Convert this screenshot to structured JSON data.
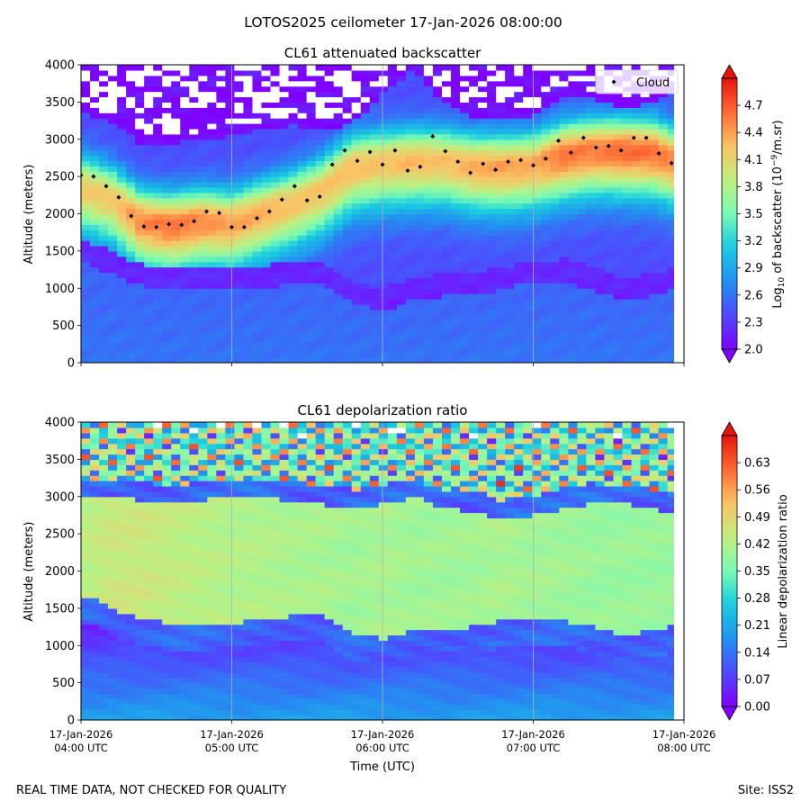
{
  "figure": {
    "suptitle": "LOTOS2025 ceilometer 17-Jan-2026 08:00:00",
    "footer_left": "REAL TIME DATA, NOT CHECKED FOR QUALITY",
    "footer_right": "Site: ISS2",
    "xlabel": "Time (UTC)"
  },
  "chart_data": [
    {
      "type": "heatmap",
      "title": "CL61 attenuated backscatter",
      "ylabel": "Altitude (meters)",
      "xlabel": "",
      "ylim": [
        0,
        4000
      ],
      "yticks": [
        0,
        500,
        1000,
        1500,
        2000,
        2500,
        3000,
        3500,
        4000
      ],
      "xticks": [
        "",
        "",
        "",
        "",
        ""
      ],
      "colorbar": {
        "label_prefix": "Log",
        "label_sub": "10",
        "label_mid": " of backscatter (10",
        "label_sup": "−9",
        "label_suffix": "/m.sr)",
        "range": [
          2.0,
          5.0
        ],
        "ticks": [
          "2.0",
          "2.3",
          "2.6",
          "2.9",
          "3.2",
          "3.5",
          "3.8",
          "4.1",
          "4.4",
          "4.7"
        ],
        "extend": "both"
      },
      "legend": {
        "label": "Cloud",
        "loc": "upper right"
      },
      "cloud_series": {
        "name": "Cloud",
        "hours": [
          4.0,
          4.083,
          4.167,
          4.25,
          4.333,
          4.417,
          4.5,
          4.583,
          4.667,
          4.75,
          4.833,
          4.917,
          5.0,
          5.083,
          5.167,
          5.25,
          5.333,
          5.417,
          5.5,
          5.583,
          5.667,
          5.75,
          5.833,
          5.917,
          6.0,
          6.083,
          6.167,
          6.25,
          6.333,
          6.417,
          6.5,
          6.583,
          6.667,
          6.75,
          6.833,
          6.917,
          7.0,
          7.083,
          7.167,
          7.25,
          7.333,
          7.417,
          7.5,
          7.583,
          7.667,
          7.75,
          7.833,
          7.917
        ],
        "altitude_m": [
          2520,
          2500,
          2370,
          2220,
          1970,
          1830,
          1820,
          1860,
          1850,
          1900,
          2030,
          2010,
          1820,
          1820,
          1940,
          2030,
          2190,
          2370,
          2180,
          2230,
          2660,
          2850,
          2710,
          2830,
          2660,
          2850,
          2580,
          2630,
          3040,
          2840,
          2700,
          2550,
          2670,
          2590,
          2700,
          2720,
          2650,
          2740,
          2980,
          2820,
          3020,
          2890,
          2910,
          2850,
          3020,
          3020,
          2810,
          2680
        ]
      },
      "layer_hours": [
        4.0,
        4.2,
        4.4,
        4.6,
        4.8,
        5.0,
        5.2,
        5.4,
        5.6,
        5.8,
        6.0,
        6.2,
        6.4,
        6.6,
        6.8,
        7.0,
        7.2,
        7.4,
        7.6,
        7.8,
        7.95
      ],
      "cloud_layer_center_m": [
        2360,
        2220,
        1900,
        1850,
        1910,
        1880,
        2020,
        2150,
        2330,
        2640,
        2690,
        2720,
        2720,
        2650,
        2640,
        2670,
        2800,
        2860,
        2860,
        2840,
        2720
      ],
      "cloud_layer_peak_log10": [
        4.2,
        4.2,
        4.5,
        4.6,
        4.5,
        4.4,
        4.35,
        4.25,
        4.25,
        4.3,
        4.25,
        4.3,
        4.25,
        4.35,
        4.4,
        4.35,
        4.6,
        4.55,
        4.65,
        4.6,
        4.5
      ],
      "boundary_layer_top_m": [
        1680,
        1500,
        1330,
        1280,
        1280,
        1280,
        1300,
        1370,
        1370,
        1100,
        1000,
        1150,
        1200,
        1200,
        1300,
        1370,
        1400,
        1280,
        1150,
        1200,
        1300
      ],
      "upper_gap_altitude_m": [
        3400,
        3200,
        2950,
        2950,
        3000,
        3050,
        3120,
        3180,
        3150,
        3200,
        3600,
        3950,
        3500,
        3300,
        3280,
        3300,
        3600,
        3550,
        3400,
        3500,
        3700
      ]
    },
    {
      "type": "heatmap",
      "title": "CL61 depolarization ratio",
      "ylabel": "Altitude (meters)",
      "xlabel": "Time (UTC)",
      "ylim": [
        0,
        4000
      ],
      "yticks": [
        0,
        500,
        1000,
        1500,
        2000,
        2500,
        3000,
        3500,
        4000
      ],
      "xticks": [
        "17-Jan-2026\n04:00 UTC",
        "17-Jan-2026\n05:00 UTC",
        "17-Jan-2026\n06:00 UTC",
        "17-Jan-2026\n07:00 UTC",
        "17-Jan-2026\n08:00 UTC"
      ],
      "colorbar": {
        "label": "Linear depolarization ratio",
        "range": [
          0.0,
          0.7
        ],
        "ticks": [
          "0.00",
          "0.07",
          "0.14",
          "0.21",
          "0.28",
          "0.35",
          "0.42",
          "0.49",
          "0.56",
          "0.63"
        ],
        "extend": "both"
      },
      "layer_hours": [
        4.0,
        4.2,
        4.4,
        4.6,
        4.8,
        5.0,
        5.2,
        5.4,
        5.6,
        5.8,
        6.0,
        6.2,
        6.4,
        6.6,
        6.8,
        7.0,
        7.2,
        7.4,
        7.6,
        7.8,
        7.95
      ],
      "mid_layer_top_m": [
        3000,
        3000,
        2950,
        2900,
        2950,
        3000,
        3000,
        2950,
        2900,
        2850,
        2900,
        3000,
        2850,
        2800,
        2700,
        2750,
        2850,
        2900,
        2900,
        2850,
        2750
      ],
      "mid_layer_bottom_m": [
        1700,
        1500,
        1350,
        1300,
        1300,
        1300,
        1350,
        1400,
        1400,
        1150,
        1100,
        1200,
        1250,
        1250,
        1350,
        1350,
        1350,
        1250,
        1150,
        1200,
        1300
      ],
      "mid_layer_value": [
        0.43,
        0.45,
        0.45,
        0.44,
        0.43,
        0.42,
        0.42,
        0.41,
        0.41,
        0.4,
        0.41,
        0.4,
        0.4,
        0.4,
        0.41,
        0.4,
        0.4,
        0.39,
        0.39,
        0.39,
        0.39
      ]
    }
  ]
}
